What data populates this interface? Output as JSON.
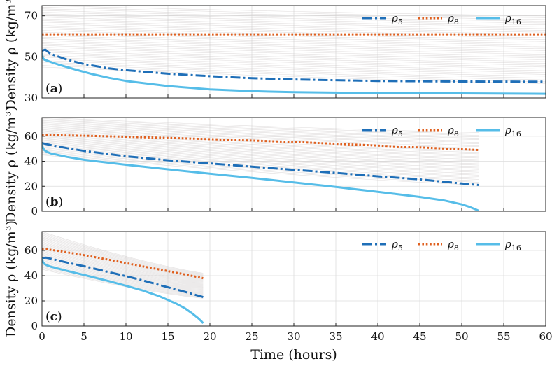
{
  "chart_data": {
    "type": "line",
    "xlabel": "Time (hours)",
    "ylabel": "Density ρ (kg/m³)",
    "xlim": [
      0,
      60
    ],
    "xticks": [
      0,
      5,
      10,
      15,
      20,
      25,
      30,
      35,
      40,
      45,
      50,
      55,
      60
    ],
    "background_series": "thin grey density trajectories of all other segments",
    "legend": [
      {
        "name": "ρ5",
        "style": "dash-dot",
        "color": "#1f6fb8"
      },
      {
        "name": "ρ8",
        "style": "dotted",
        "color": "#e0601f"
      },
      {
        "name": "ρ16",
        "style": "solid",
        "color": "#56bde8"
      }
    ],
    "panels": [
      {
        "tag": "(a)",
        "ylim": [
          30,
          75
        ],
        "yticks": [
          30,
          50,
          70
        ],
        "t_end": 60,
        "series": [
          {
            "name": "ρ5",
            "x": [
              0,
              0.4,
              1,
              3,
              5,
              8,
              10,
              15,
              20,
              25,
              30,
              40,
              50,
              60
            ],
            "y": [
              53,
              53.5,
              51.5,
              48.6,
              46.5,
              44.4,
              43.5,
              41.8,
              40.6,
              39.6,
              39.0,
              38.3,
              38.0,
              37.9
            ]
          },
          {
            "name": "ρ8",
            "x": [
              0,
              60
            ],
            "y": [
              61,
              61
            ]
          },
          {
            "name": "ρ16",
            "x": [
              0,
              0.1,
              0.3,
              0.6,
              1,
              2,
              4,
              6,
              8,
              10,
              15,
              20,
              25,
              30,
              40,
              50,
              60
            ],
            "y": [
              52,
              49.5,
              48.6,
              48.2,
              47.6,
              46.2,
              43.8,
              41.6,
              39.8,
              38.3,
              35.8,
              34.2,
              33.3,
              32.8,
              32.4,
              32.2,
              32.0
            ]
          }
        ],
        "background": {
          "start_min": 45,
          "start_max": 75,
          "end_min": 37,
          "end_max": 70,
          "count": 38
        }
      },
      {
        "tag": "(b)",
        "ylim": [
          0,
          75
        ],
        "yticks": [
          0,
          20,
          40,
          60
        ],
        "t_end": 52,
        "series": [
          {
            "name": "ρ5",
            "x": [
              0,
              1,
              3,
              5,
              10,
              15,
              20,
              25,
              30,
              35,
              40,
              45,
              50,
              52
            ],
            "y": [
              54.5,
              53,
              50.5,
              48.3,
              44,
              40.8,
              38.3,
              35.7,
              33.2,
              30.7,
              28,
              25.5,
              22.2,
              21
            ]
          },
          {
            "name": "ρ8",
            "x": [
              0,
              5,
              10,
              20,
              30,
              40,
              52
            ],
            "y": [
              61,
              60.4,
              59.6,
              57.7,
              55.4,
              52.5,
              49
            ]
          },
          {
            "name": "ρ16",
            "x": [
              0,
              0.1,
              0.3,
              0.6,
              1,
              3,
              5,
              10,
              15,
              20,
              25,
              30,
              35,
              40,
              45,
              48,
              50,
              51,
              52
            ],
            "y": [
              54,
              51,
              48.8,
              47.6,
              46.4,
              43.5,
              41.2,
              37.2,
              33.6,
              30.1,
              26.7,
              23.1,
              19.4,
              15.5,
              11.5,
              8.5,
              5.5,
              3.3,
              0.5
            ]
          }
        ],
        "background": {
          "start_min": 45,
          "start_max": 75,
          "end_min": 21,
          "end_max": 63,
          "count": 38
        }
      },
      {
        "tag": "(c)",
        "ylim": [
          0,
          75
        ],
        "yticks": [
          0,
          20,
          40,
          60
        ],
        "t_end": 19.2,
        "series": [
          {
            "name": "ρ5",
            "x": [
              0,
              0.5,
              1,
              3,
              5,
              8,
              10,
              12,
              15,
              17,
              19.2
            ],
            "y": [
              54,
              54.3,
              53.5,
              50.4,
              47.5,
              42.8,
              39.6,
              36.2,
              30.8,
              27.2,
              23
            ]
          },
          {
            "name": "ρ8",
            "x": [
              0,
              0.5,
              2,
              5,
              8,
              10,
              12,
              15,
              17,
              19.2
            ],
            "y": [
              61,
              61,
              59.6,
              56.3,
              52.6,
              50.0,
              47.4,
              43.6,
              41.0,
              38
            ]
          },
          {
            "name": "ρ16",
            "x": [
              0,
              0.1,
              0.3,
              0.6,
              1,
              3,
              5,
              8,
              10,
              12,
              14,
              16,
              17,
              18,
              18.6,
              19.0,
              19.2
            ],
            "y": [
              54,
              51,
              49.2,
              48.2,
              47.2,
              43.8,
              40.6,
              35.6,
              32.0,
              28.2,
              23.6,
              17.8,
              14.2,
              9.5,
              6.3,
              3.8,
              2.2
            ]
          }
        ],
        "background": {
          "start_min": 45,
          "start_max": 75,
          "end_min": 22,
          "end_max": 42,
          "count": 38
        }
      }
    ]
  }
}
